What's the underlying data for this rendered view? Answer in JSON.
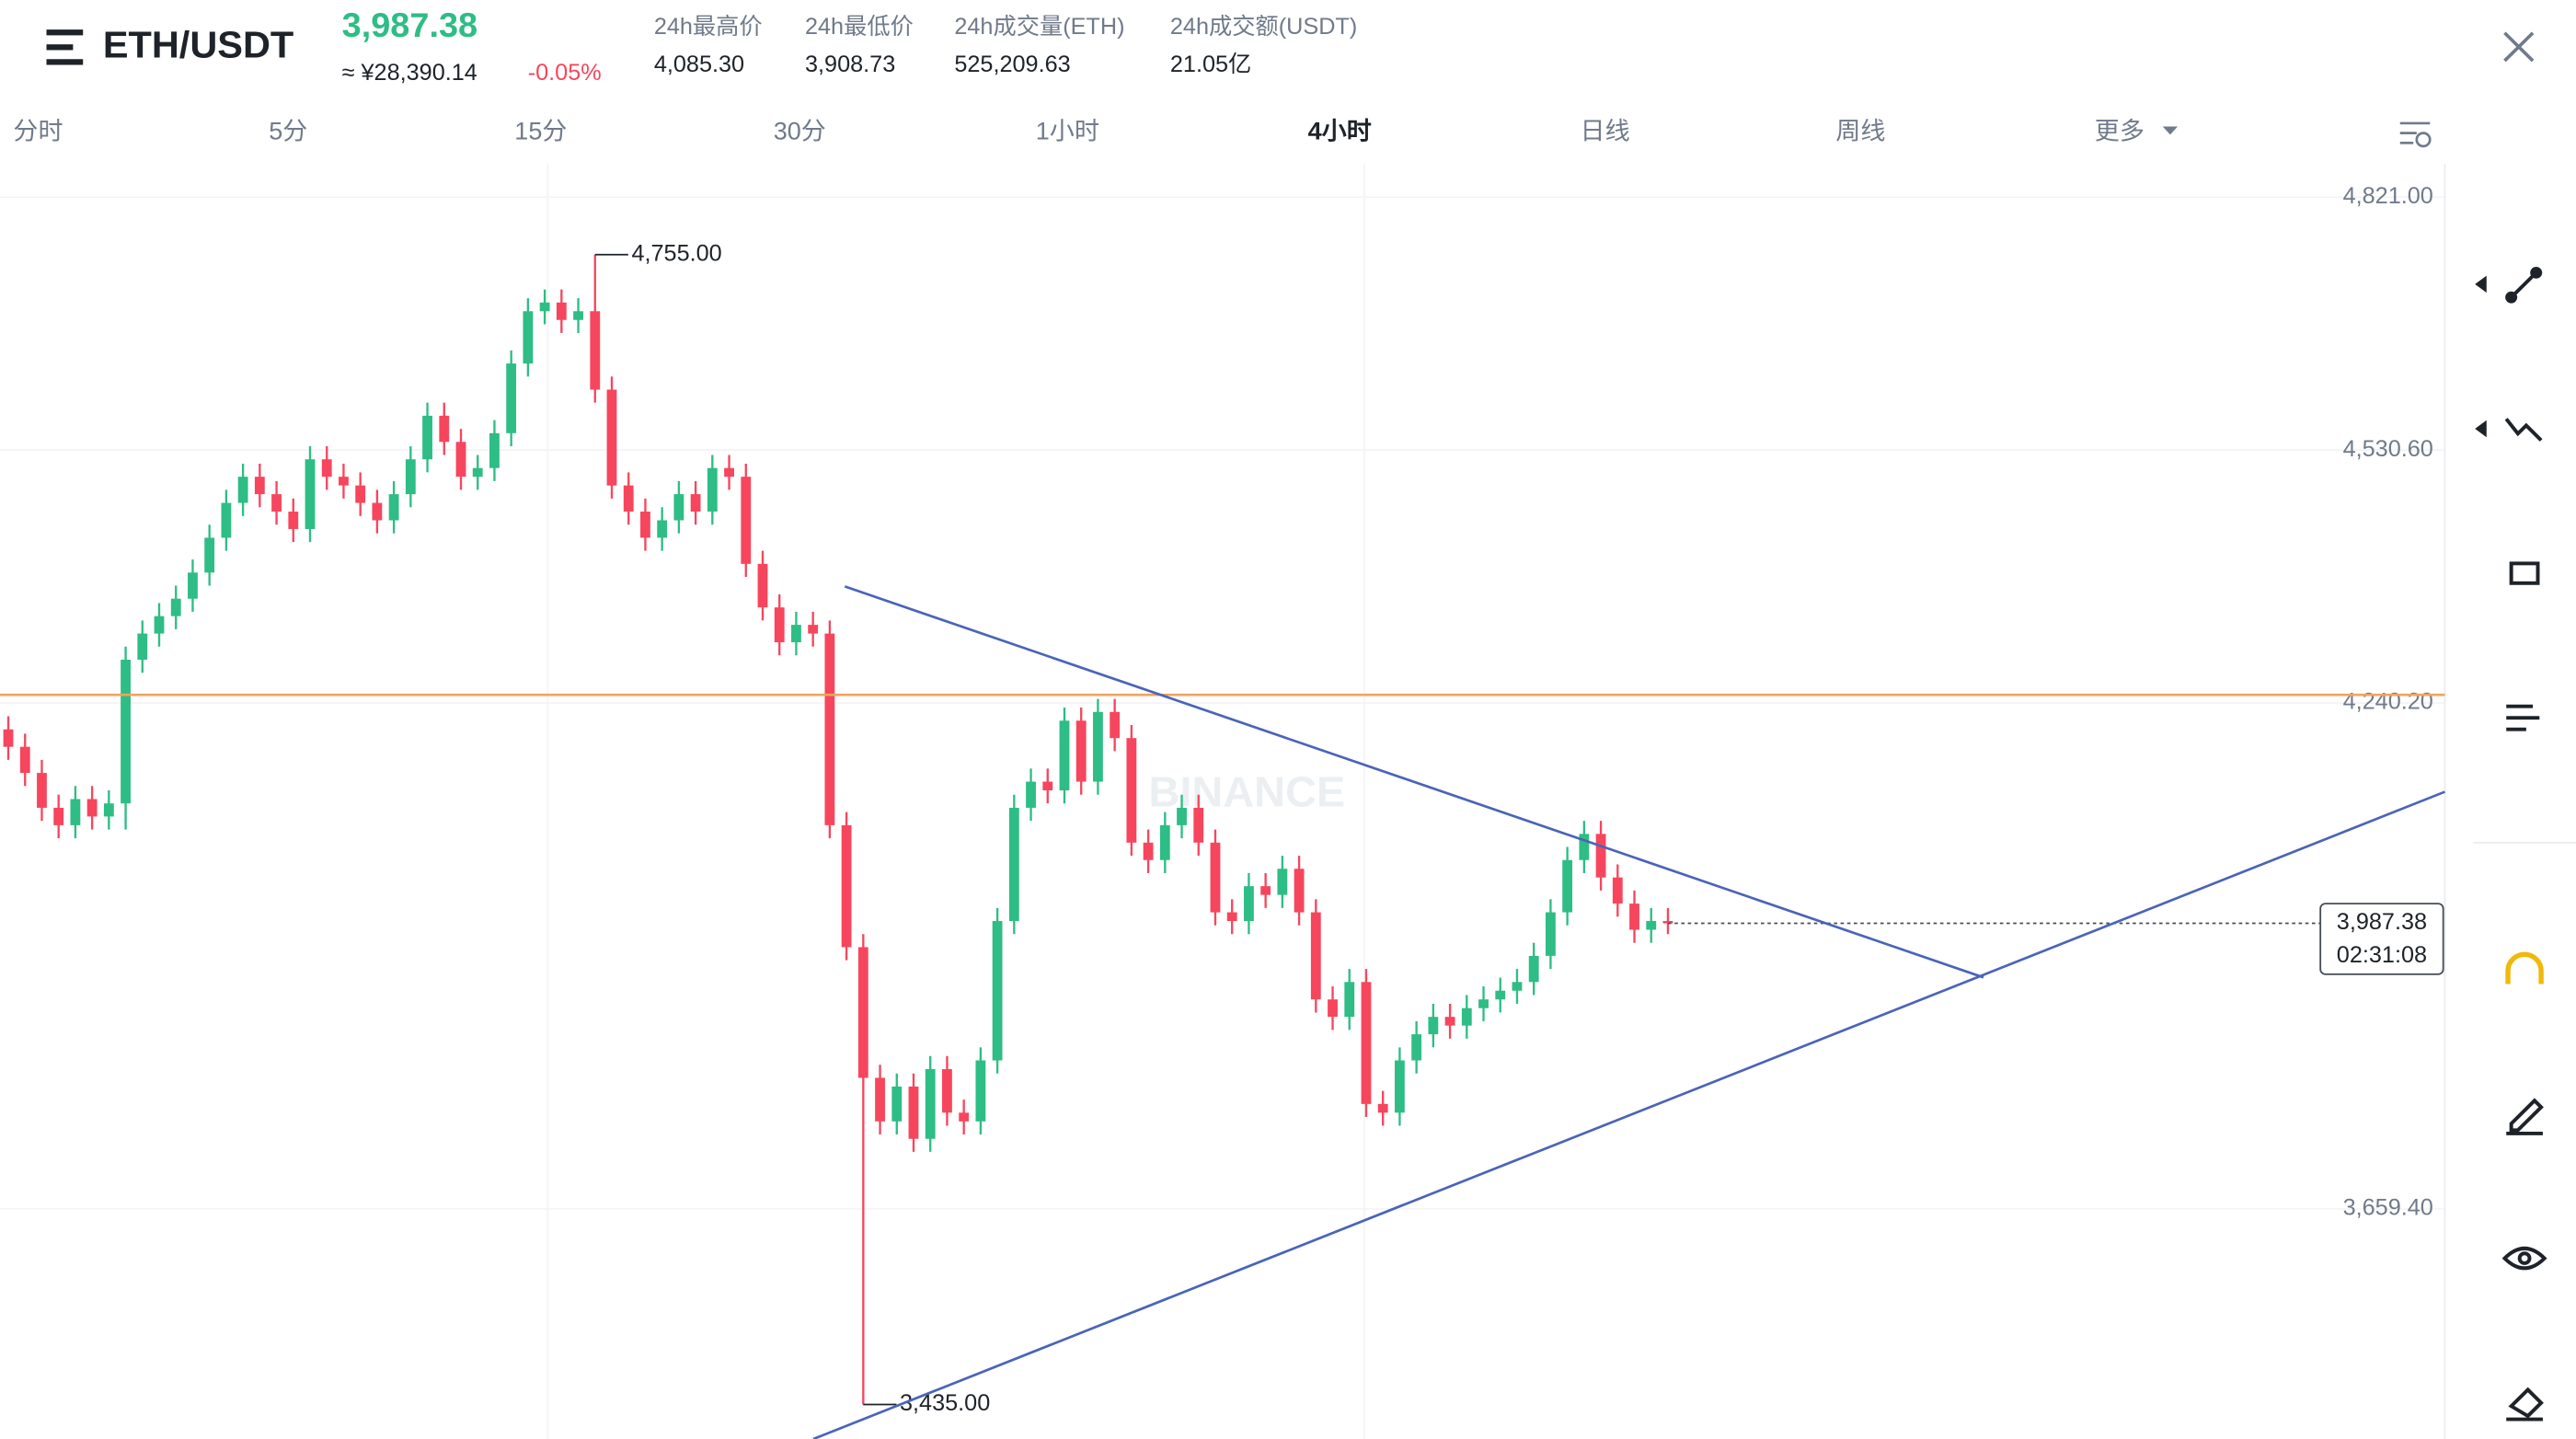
{
  "header": {
    "symbol": "ETH/USDT",
    "price": "3,987.38",
    "cny": "≈ ¥28,390.14",
    "change": "-0.05%",
    "stats": [
      {
        "label": "24h最高价",
        "value": "4,085.30"
      },
      {
        "label": "24h最低价",
        "value": "3,908.73"
      },
      {
        "label": "24h成交量(ETH)",
        "value": "525,209.63"
      },
      {
        "label": "24h成交额(USDT)",
        "value": "21.05亿"
      }
    ]
  },
  "tabs": [
    "分时",
    "5分",
    "15分",
    "30分",
    "1小时",
    "4小时",
    "日线",
    "周线",
    "更多"
  ],
  "active_tab": 5,
  "chart_data": {
    "type": "candlestick",
    "watermark": "BINANCE",
    "up_color": "#2ebd85",
    "down_color": "#f6465d",
    "ylim": [
      3395.4,
      4858.7
    ],
    "yticks": [
      {
        "value": 4821,
        "label": "4,821.00"
      },
      {
        "value": 4530.6,
        "label": "4,530.60"
      },
      {
        "value": 4240.2,
        "label": "4,240.20"
      },
      {
        "value": 3659.4,
        "label": "3,659.40"
      }
    ],
    "grid": true,
    "open": [
      4210,
      4190,
      4160,
      4120,
      4100,
      4130,
      4110,
      4125,
      4290,
      4320,
      4340,
      4360,
      4390,
      4430,
      4470,
      4500,
      4480,
      4460,
      4440,
      4520,
      4500,
      4490,
      4470,
      4450,
      4480,
      4520,
      4570,
      4540,
      4500,
      4510,
      4550,
      4630,
      4690,
      4700,
      4680,
      4690,
      4600,
      4490,
      4460,
      4430,
      4450,
      4480,
      4460,
      4510,
      4500,
      4400,
      4350,
      4310,
      4330,
      4320,
      4100,
      3960,
      3810,
      3760,
      3800,
      3740,
      3820,
      3770,
      3760,
      3830,
      3990,
      4120,
      4150,
      4140,
      4220,
      4150,
      4230,
      4200,
      4080,
      4060,
      4100,
      4120,
      4080,
      4000,
      3990,
      4030,
      4020,
      4050,
      4000,
      3900,
      3880,
      3920,
      3780,
      3770,
      3830,
      3860,
      3880,
      3870,
      3890,
      3900,
      3910,
      3920,
      3950,
      4000,
      4060,
      4090,
      4040,
      4010,
      3980,
      3990
    ],
    "high": [
      4225,
      4205,
      4175,
      4135,
      4145,
      4145,
      4140,
      4305,
      4335,
      4355,
      4375,
      4405,
      4445,
      4485,
      4515,
      4515,
      4495,
      4475,
      4535,
      4535,
      4515,
      4505,
      4485,
      4495,
      4535,
      4585,
      4585,
      4555,
      4525,
      4565,
      4645,
      4705,
      4715,
      4715,
      4705,
      4755,
      4615,
      4505,
      4475,
      4465,
      4495,
      4495,
      4525,
      4525,
      4515,
      4415,
      4365,
      4345,
      4345,
      4335,
      4115,
      3975,
      3825,
      3815,
      3815,
      3835,
      3835,
      3785,
      3845,
      4005,
      4135,
      4165,
      4165,
      4235,
      4235,
      4245,
      4245,
      4215,
      4095,
      4115,
      4135,
      4135,
      4095,
      4015,
      4045,
      4045,
      4065,
      4065,
      4015,
      3915,
      3935,
      3935,
      3795,
      3845,
      3875,
      3895,
      3895,
      3905,
      3915,
      3925,
      3935,
      3965,
      4015,
      4075,
      4105,
      4105,
      4055,
      4025,
      4005,
      4005
    ],
    "low": [
      4175,
      4145,
      4105,
      4085,
      4085,
      4095,
      4095,
      4095,
      4275,
      4305,
      4325,
      4345,
      4375,
      4415,
      4455,
      4465,
      4445,
      4425,
      4425,
      4485,
      4475,
      4455,
      4435,
      4435,
      4465,
      4505,
      4525,
      4485,
      4485,
      4495,
      4535,
      4615,
      4675,
      4665,
      4665,
      4585,
      4475,
      4445,
      4415,
      4415,
      4435,
      4445,
      4445,
      4485,
      4385,
      4335,
      4295,
      4295,
      4305,
      4085,
      3945,
      3435,
      3745,
      3745,
      3725,
      3725,
      3755,
      3745,
      3745,
      3815,
      3975,
      4105,
      4125,
      4125,
      4135,
      4135,
      4185,
      4065,
      4045,
      4045,
      4085,
      4065,
      3985,
      3975,
      3975,
      4005,
      4005,
      3985,
      3885,
      3865,
      3865,
      3765,
      3755,
      3755,
      3815,
      3845,
      3855,
      3855,
      3875,
      3885,
      3895,
      3905,
      3935,
      3985,
      4045,
      4025,
      3995,
      3965,
      3965,
      3975
    ],
    "close": [
      4190,
      4160,
      4120,
      4100,
      4130,
      4110,
      4125,
      4290,
      4320,
      4340,
      4360,
      4390,
      4430,
      4470,
      4500,
      4480,
      4460,
      4440,
      4520,
      4500,
      4490,
      4470,
      4450,
      4480,
      4520,
      4570,
      4540,
      4500,
      4510,
      4550,
      4630,
      4690,
      4700,
      4680,
      4690,
      4600,
      4490,
      4460,
      4430,
      4450,
      4480,
      4460,
      4510,
      4500,
      4400,
      4350,
      4310,
      4330,
      4320,
      4100,
      3960,
      3810,
      3760,
      3800,
      3740,
      3820,
      3770,
      3760,
      3830,
      3990,
      4120,
      4150,
      4140,
      4220,
      4150,
      4230,
      4200,
      4080,
      4060,
      4100,
      4120,
      4080,
      4000,
      3990,
      4030,
      4020,
      4050,
      4000,
      3900,
      3880,
      3920,
      3780,
      3770,
      3830,
      3860,
      3880,
      3870,
      3890,
      3900,
      3910,
      3920,
      3950,
      4000,
      4060,
      4090,
      4040,
      4010,
      3980,
      3990,
      3987.38
    ],
    "max_label": "4,755.00",
    "min_label": "3,435.00",
    "price_tag": "3,987.38",
    "countdown": "02:31:08"
  }
}
